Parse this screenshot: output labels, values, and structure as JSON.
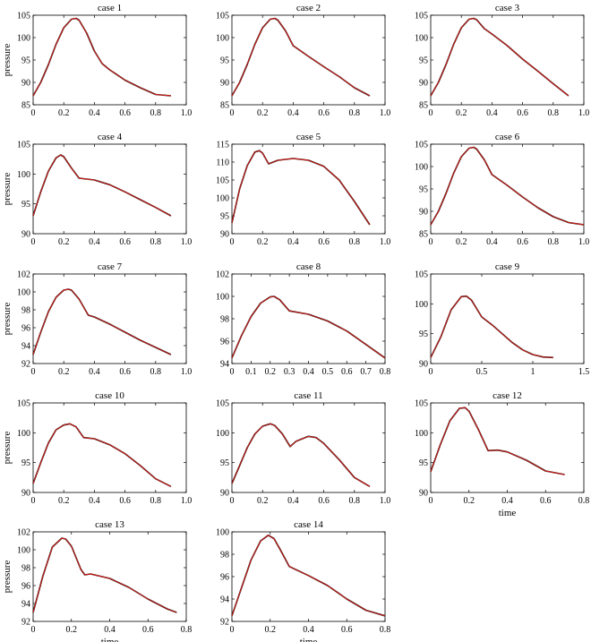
{
  "colors": {
    "measured": "#000000",
    "model": "#e8201a",
    "axis": "#000000"
  },
  "chart_data": [
    {
      "type": "line",
      "title": "case 1",
      "ylabel": "pressure",
      "xlabel": "",
      "xlim": [
        0,
        1
      ],
      "ylim": [
        85,
        105
      ],
      "xticks": [
        0,
        0.2,
        0.4,
        0.6,
        0.8,
        1.0
      ],
      "xticklabels": [
        "0",
        "0.2",
        "0.4",
        "0.6",
        "0.8",
        "1.0"
      ],
      "yticks": [
        85,
        90,
        95,
        100,
        105
      ],
      "x": [
        0,
        0.05,
        0.1,
        0.15,
        0.2,
        0.25,
        0.28,
        0.3,
        0.35,
        0.4,
        0.45,
        0.5,
        0.6,
        0.7,
        0.8,
        0.9
      ],
      "y": [
        87,
        90,
        94,
        98.5,
        102.2,
        104.1,
        104.3,
        103.9,
        101,
        97,
        94.2,
        92.8,
        90.5,
        88.8,
        87.3,
        87
      ]
    },
    {
      "type": "line",
      "title": "case 2",
      "ylabel": "",
      "xlabel": "",
      "xlim": [
        0,
        1
      ],
      "ylim": [
        85,
        105
      ],
      "xticks": [
        0,
        0.2,
        0.4,
        0.6,
        0.8,
        1.0
      ],
      "xticklabels": [
        "0",
        "0.2",
        "0.4",
        "0.6",
        "0.8",
        "1.0"
      ],
      "yticks": [
        85,
        90,
        95,
        100,
        105
      ],
      "x": [
        0,
        0.05,
        0.1,
        0.15,
        0.2,
        0.25,
        0.28,
        0.3,
        0.35,
        0.4,
        0.5,
        0.6,
        0.7,
        0.8,
        0.9
      ],
      "y": [
        87,
        90,
        94,
        98.5,
        102.2,
        104.1,
        104.3,
        103.9,
        101.5,
        98.2,
        95.8,
        93.5,
        91.3,
        88.8,
        87
      ]
    },
    {
      "type": "line",
      "title": "case 3",
      "ylabel": "",
      "xlabel": "",
      "xlim": [
        0,
        1
      ],
      "ylim": [
        85,
        105
      ],
      "xticks": [
        0,
        0.2,
        0.4,
        0.6,
        0.8,
        1.0
      ],
      "xticklabels": [
        "0",
        "0.2",
        "0.4",
        "0.6",
        "0.8",
        "1.0"
      ],
      "yticks": [
        85,
        90,
        95,
        100,
        105
      ],
      "x": [
        0,
        0.05,
        0.1,
        0.15,
        0.2,
        0.25,
        0.28,
        0.3,
        0.35,
        0.4,
        0.5,
        0.6,
        0.7,
        0.8,
        0.9
      ],
      "y": [
        87,
        90,
        94,
        98.5,
        102.2,
        104.1,
        104.3,
        104,
        102,
        100.8,
        98.2,
        95.2,
        92.5,
        89.7,
        87
      ]
    },
    {
      "type": "line",
      "title": "case 4",
      "ylabel": "pressure",
      "xlabel": "",
      "xlim": [
        0,
        1
      ],
      "ylim": [
        90,
        105
      ],
      "xticks": [
        0,
        0.2,
        0.4,
        0.6,
        0.8,
        1.0
      ],
      "xticklabels": [
        "0",
        "0.2",
        "0.4",
        "0.6",
        "0.8",
        "1.0"
      ],
      "yticks": [
        90,
        95,
        100,
        105
      ],
      "x": [
        0,
        0.05,
        0.1,
        0.15,
        0.18,
        0.2,
        0.25,
        0.3,
        0.4,
        0.5,
        0.6,
        0.7,
        0.8,
        0.9
      ],
      "y": [
        93,
        97,
        100.5,
        102.7,
        103.2,
        102.9,
        101,
        99.3,
        99,
        98.2,
        97,
        95.7,
        94.4,
        93
      ]
    },
    {
      "type": "line",
      "title": "case 5",
      "ylabel": "",
      "xlabel": "",
      "xlim": [
        0,
        1
      ],
      "ylim": [
        90,
        115
      ],
      "xticks": [
        0,
        0.2,
        0.4,
        0.6,
        0.8,
        1.0
      ],
      "xticklabels": [
        "0",
        "0.2",
        "0.4",
        "0.6",
        "0.8",
        "1.0"
      ],
      "yticks": [
        90,
        95,
        100,
        105,
        110,
        115
      ],
      "x": [
        0,
        0.05,
        0.1,
        0.15,
        0.18,
        0.2,
        0.24,
        0.3,
        0.4,
        0.5,
        0.6,
        0.7,
        0.8,
        0.9
      ],
      "y": [
        93,
        102.5,
        109,
        112.8,
        113.2,
        112.5,
        109.5,
        110.5,
        111,
        110.5,
        108.8,
        105,
        99,
        92.5
      ]
    },
    {
      "type": "line",
      "title": "case 6",
      "ylabel": "",
      "xlabel": "",
      "xlim": [
        0,
        1
      ],
      "ylim": [
        85,
        105
      ],
      "xticks": [
        0,
        0.2,
        0.4,
        0.6,
        0.8,
        1.0
      ],
      "xticklabels": [
        "0",
        "0.2",
        "0.4",
        "0.6",
        "0.8",
        "1.0"
      ],
      "yticks": [
        85,
        90,
        95,
        100,
        105
      ],
      "x": [
        0,
        0.05,
        0.1,
        0.15,
        0.2,
        0.25,
        0.28,
        0.3,
        0.35,
        0.4,
        0.5,
        0.6,
        0.7,
        0.8,
        0.9,
        1.0
      ],
      "y": [
        87,
        90,
        94,
        98.5,
        102.2,
        104.1,
        104.3,
        103.9,
        101.5,
        98.2,
        95.8,
        93.2,
        90.8,
        88.8,
        87.5,
        87
      ]
    },
    {
      "type": "line",
      "title": "case 7",
      "ylabel": "pressure",
      "xlabel": "",
      "xlim": [
        0,
        1
      ],
      "ylim": [
        92,
        102
      ],
      "xticks": [
        0,
        0.2,
        0.4,
        0.6,
        0.8,
        1.0
      ],
      "xticklabels": [
        "0",
        "0.2",
        "0.4",
        "0.6",
        "0.8",
        "1.0"
      ],
      "yticks": [
        92,
        94,
        96,
        98,
        100,
        102
      ],
      "x": [
        0,
        0.05,
        0.1,
        0.15,
        0.2,
        0.23,
        0.25,
        0.3,
        0.36,
        0.4,
        0.5,
        0.6,
        0.7,
        0.8,
        0.9
      ],
      "y": [
        93,
        95.5,
        97.8,
        99.4,
        100.2,
        100.3,
        100.2,
        99.2,
        97.4,
        97.2,
        96.4,
        95.5,
        94.6,
        93.8,
        93
      ]
    },
    {
      "type": "line",
      "title": "case 8",
      "ylabel": "",
      "xlabel": "",
      "xlim": [
        0,
        0.8
      ],
      "ylim": [
        94,
        102
      ],
      "xticks": [
        0,
        0.1,
        0.2,
        0.3,
        0.4,
        0.5,
        0.6,
        0.7,
        0.8
      ],
      "xticklabels": [
        "0",
        "0.1",
        "0.2",
        "0.3",
        "0.4",
        "0.5",
        "0.6",
        "0.7",
        "0.8"
      ],
      "yticks": [
        94,
        96,
        98,
        100,
        102
      ],
      "x": [
        0,
        0.05,
        0.1,
        0.15,
        0.2,
        0.22,
        0.25,
        0.3,
        0.4,
        0.5,
        0.6,
        0.7,
        0.8
      ],
      "y": [
        94.5,
        96.5,
        98.2,
        99.4,
        99.95,
        100,
        99.7,
        98.7,
        98.4,
        97.8,
        96.9,
        95.7,
        94.5
      ]
    },
    {
      "type": "line",
      "title": "case 9",
      "ylabel": "",
      "xlabel": "",
      "xlim": [
        0,
        1.5
      ],
      "ylim": [
        90,
        105
      ],
      "xticks": [
        0,
        0.5,
        1.0,
        1.5
      ],
      "xticklabels": [
        "0",
        "0.5",
        "1",
        "1.5"
      ],
      "yticks": [
        90,
        95,
        100,
        105
      ],
      "x": [
        0,
        0.1,
        0.2,
        0.3,
        0.35,
        0.4,
        0.5,
        0.6,
        0.7,
        0.8,
        0.9,
        1.0,
        1.1,
        1.2
      ],
      "y": [
        91,
        94.5,
        99,
        101.2,
        101.3,
        100.6,
        97.8,
        96.5,
        95,
        93.5,
        92.3,
        91.5,
        91.1,
        91
      ]
    },
    {
      "type": "line",
      "title": "case 10",
      "ylabel": "pressure",
      "xlabel": "",
      "xlim": [
        0,
        1
      ],
      "ylim": [
        90,
        105
      ],
      "xticks": [
        0,
        0.2,
        0.4,
        0.6,
        0.8,
        1.0
      ],
      "xticklabels": [
        "0",
        "0.2",
        "0.4",
        "0.6",
        "0.8",
        "1.0"
      ],
      "yticks": [
        90,
        95,
        100,
        105
      ],
      "x": [
        0,
        0.05,
        0.1,
        0.15,
        0.2,
        0.24,
        0.28,
        0.33,
        0.4,
        0.5,
        0.6,
        0.7,
        0.8,
        0.9
      ],
      "y": [
        91.5,
        95,
        98.3,
        100.5,
        101.3,
        101.5,
        101,
        99.2,
        99,
        98,
        96.5,
        94.5,
        92.3,
        91
      ]
    },
    {
      "type": "line",
      "title": "case 11",
      "ylabel": "",
      "xlabel": "",
      "xlim": [
        0,
        1
      ],
      "ylim": [
        90,
        105
      ],
      "xticks": [
        0,
        0.2,
        0.4,
        0.6,
        0.8,
        1.0
      ],
      "xticklabels": [
        "0",
        "0.2",
        "0.4",
        "0.6",
        "0.8",
        "1.0"
      ],
      "yticks": [
        90,
        95,
        100,
        105
      ],
      "x": [
        0,
        0.05,
        0.1,
        0.15,
        0.2,
        0.25,
        0.28,
        0.33,
        0.38,
        0.42,
        0.5,
        0.55,
        0.6,
        0.7,
        0.8,
        0.9
      ],
      "y": [
        91.5,
        94.5,
        97.5,
        99.8,
        101.1,
        101.5,
        101.2,
        99.8,
        97.7,
        98.6,
        99.4,
        99.2,
        98.2,
        95.5,
        92.5,
        91
      ]
    },
    {
      "type": "line",
      "title": "case 12",
      "ylabel": "",
      "xlabel": "time",
      "xlim": [
        0,
        0.8
      ],
      "ylim": [
        90,
        105
      ],
      "xticks": [
        0,
        0.2,
        0.4,
        0.6,
        0.8
      ],
      "xticklabels": [
        "0",
        "0.2",
        "0.4",
        "0.6",
        "0.8"
      ],
      "yticks": [
        90,
        95,
        100,
        105
      ],
      "x": [
        0,
        0.05,
        0.1,
        0.15,
        0.18,
        0.2,
        0.25,
        0.3,
        0.35,
        0.4,
        0.5,
        0.6,
        0.7
      ],
      "y": [
        93.5,
        98,
        102,
        104.1,
        104.2,
        103.6,
        100.5,
        97,
        97.1,
        96.8,
        95.4,
        93.6,
        93
      ]
    },
    {
      "type": "line",
      "title": "case 13",
      "ylabel": "pressure",
      "xlabel": "time",
      "xlim": [
        0,
        0.8
      ],
      "ylim": [
        92,
        102
      ],
      "xticks": [
        0,
        0.2,
        0.4,
        0.6,
        0.8
      ],
      "xticklabels": [
        "0",
        "0.2",
        "0.4",
        "0.6",
        "0.8"
      ],
      "yticks": [
        92,
        94,
        96,
        98,
        100,
        102
      ],
      "x": [
        0,
        0.05,
        0.1,
        0.15,
        0.17,
        0.2,
        0.25,
        0.27,
        0.3,
        0.4,
        0.5,
        0.6,
        0.7,
        0.75
      ],
      "y": [
        93,
        97,
        100.3,
        101.3,
        101.2,
        100.4,
        97.8,
        97.2,
        97.3,
        96.8,
        95.8,
        94.5,
        93.4,
        93
      ]
    },
    {
      "type": "line",
      "title": "case 14",
      "ylabel": "",
      "xlabel": "time",
      "xlim": [
        0,
        0.8
      ],
      "ylim": [
        92,
        100
      ],
      "xticks": [
        0,
        0.2,
        0.4,
        0.6,
        0.8
      ],
      "xticklabels": [
        "0",
        "0.2",
        "0.4",
        "0.6",
        "0.8"
      ],
      "yticks": [
        92,
        94,
        96,
        98,
        100
      ],
      "x": [
        0,
        0.05,
        0.1,
        0.15,
        0.19,
        0.22,
        0.25,
        0.3,
        0.4,
        0.5,
        0.6,
        0.7,
        0.8
      ],
      "y": [
        92.5,
        95,
        97.5,
        99.2,
        99.7,
        99.4,
        98.5,
        96.9,
        96.1,
        95.2,
        94,
        93,
        92.5
      ]
    }
  ]
}
